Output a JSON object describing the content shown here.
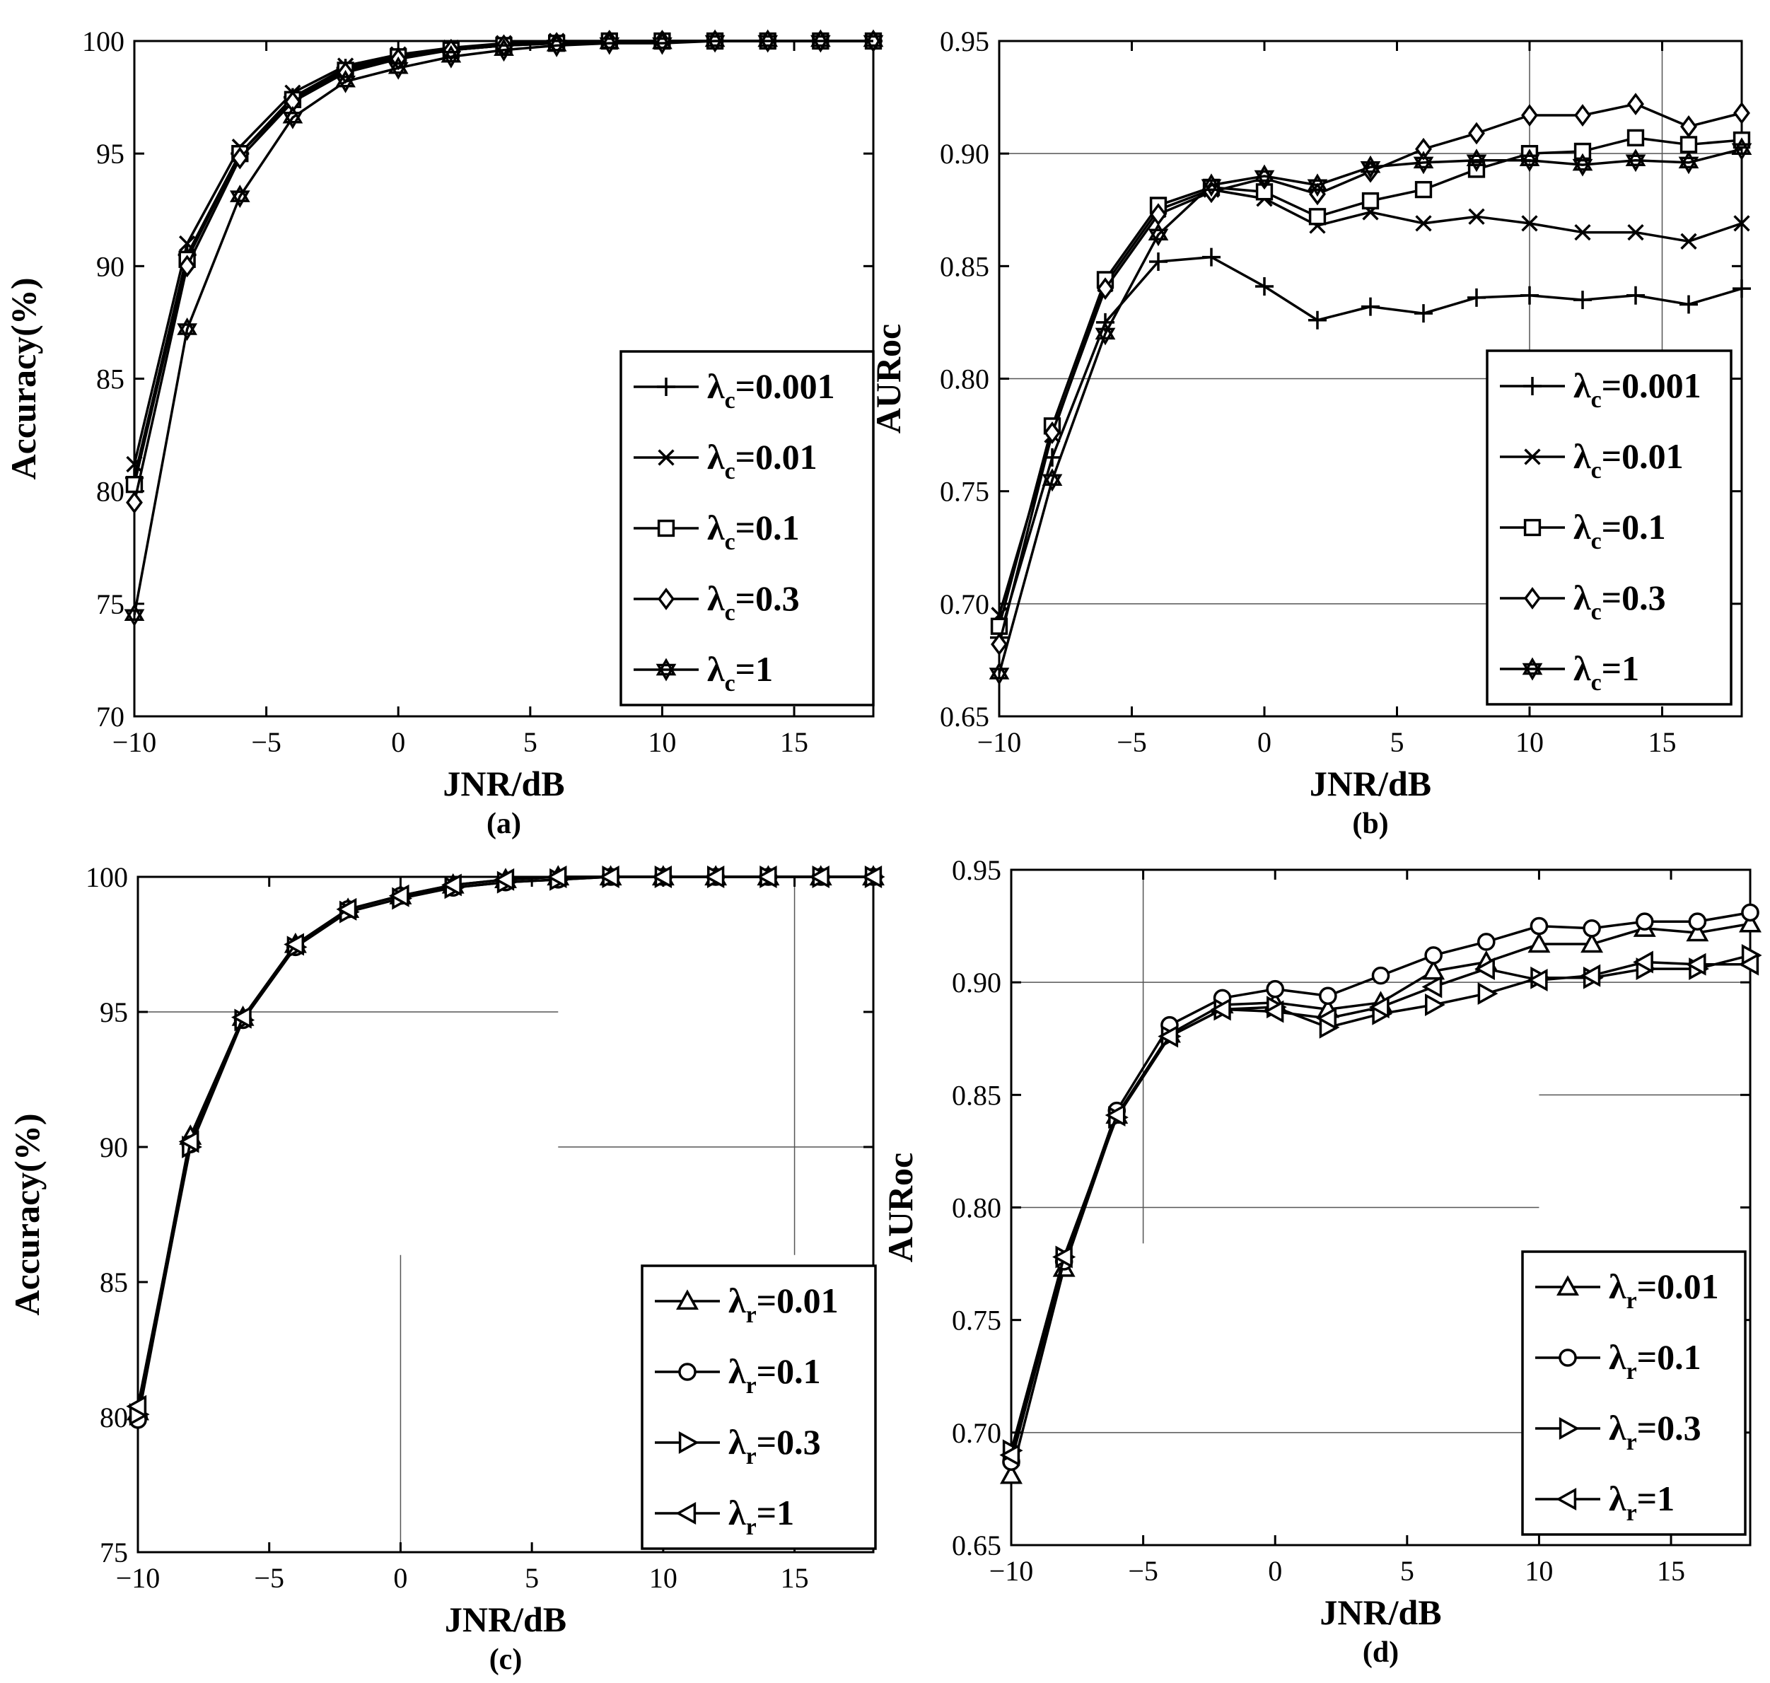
{
  "figure": {
    "background": "#ffffff",
    "line_color": "#000000",
    "grid_color": "#555555"
  },
  "chart_data": [
    {
      "type": "line",
      "panel_label": "(a)",
      "xlabel": "JNR/dB",
      "ylabel": "Accuracy(%)",
      "xlim": [
        -10,
        18
      ],
      "ylim": [
        70,
        100
      ],
      "xticks": [
        -10,
        -5,
        0,
        5,
        10,
        15
      ],
      "yticks": [
        70,
        75,
        80,
        85,
        90,
        95,
        100
      ],
      "ytick_labels": [
        "70",
        "75",
        "80",
        "85",
        "90",
        "95",
        "100"
      ],
      "grid_segments": [],
      "legend_position": "bottom-right",
      "x": [
        -10,
        -8,
        -6,
        -4,
        -2,
        0,
        2,
        4,
        6,
        8,
        10,
        12,
        14,
        16,
        18
      ],
      "series": [
        {
          "name": "=0.001",
          "symbol": "λ",
          "sub": "c",
          "marker": "plus",
          "values": [
            80.6,
            90.5,
            95.0,
            97.5,
            98.8,
            99.3,
            99.6,
            99.8,
            99.9,
            100,
            100,
            100,
            100,
            100,
            100
          ]
        },
        {
          "name": "=0.01",
          "symbol": "λ",
          "sub": "c",
          "marker": "cross",
          "values": [
            81.2,
            91.0,
            95.3,
            97.7,
            98.9,
            99.4,
            99.7,
            99.9,
            100,
            100,
            100,
            100,
            100,
            100,
            100
          ]
        },
        {
          "name": "=0.1",
          "symbol": "λ",
          "sub": "c",
          "marker": "square",
          "values": [
            80.3,
            90.3,
            95.0,
            97.4,
            98.7,
            99.3,
            99.6,
            99.8,
            99.9,
            100,
            100,
            100,
            100,
            100,
            100
          ]
        },
        {
          "name": "=0.3",
          "symbol": "λ",
          "sub": "c",
          "marker": "diamond",
          "values": [
            79.5,
            90.0,
            94.8,
            97.3,
            98.6,
            99.2,
            99.6,
            99.8,
            99.9,
            100,
            100,
            100,
            100,
            100,
            100
          ]
        },
        {
          "name": "=1",
          "symbol": "λ",
          "sub": "c",
          "marker": "star",
          "values": [
            74.5,
            87.2,
            93.1,
            96.6,
            98.2,
            98.8,
            99.3,
            99.6,
            99.8,
            99.9,
            99.9,
            100,
            100,
            100,
            100
          ]
        }
      ]
    },
    {
      "type": "line",
      "panel_label": "(b)",
      "xlabel": "JNR/dB",
      "ylabel": "AURoc",
      "xlim": [
        -10,
        18
      ],
      "ylim": [
        0.65,
        0.95
      ],
      "xticks": [
        -10,
        -5,
        0,
        5,
        10,
        15
      ],
      "yticks": [
        0.65,
        0.7,
        0.75,
        0.8,
        0.85,
        0.9,
        0.95
      ],
      "ytick_labels": [
        "0.65",
        "0.70",
        "0.75",
        "0.80",
        "0.85",
        "0.90",
        "0.95"
      ],
      "grid_segments": [
        {
          "x1": -10,
          "y1": 0.7,
          "x2": 18,
          "y2": 0.7
        },
        {
          "x1": -10,
          "y1": 0.8,
          "x2": 18,
          "y2": 0.8
        },
        {
          "x1": -10,
          "y1": 0.9,
          "x2": 18,
          "y2": 0.9
        },
        {
          "x1": 10,
          "y1": 0.81,
          "x2": 10,
          "y2": 0.95
        },
        {
          "x1": 15,
          "y1": 0.81,
          "x2": 15,
          "y2": 0.95
        }
      ],
      "legend_position": "bottom-right",
      "x": [
        -10,
        -8,
        -6,
        -4,
        -2,
        0,
        2,
        4,
        6,
        8,
        10,
        12,
        14,
        16,
        18
      ],
      "series": [
        {
          "name": "=0.001",
          "symbol": "λ",
          "sub": "c",
          "marker": "plus",
          "values": [
            0.685,
            0.765,
            0.825,
            0.852,
            0.854,
            0.841,
            0.826,
            0.832,
            0.829,
            0.836,
            0.837,
            0.835,
            0.837,
            0.833,
            0.84
          ]
        },
        {
          "name": "=0.01",
          "symbol": "λ",
          "sub": "c",
          "marker": "cross",
          "values": [
            0.695,
            0.775,
            0.842,
            0.875,
            0.884,
            0.88,
            0.868,
            0.874,
            0.869,
            0.872,
            0.869,
            0.865,
            0.865,
            0.861,
            0.869
          ]
        },
        {
          "name": "=0.1",
          "symbol": "λ",
          "sub": "c",
          "marker": "square",
          "values": [
            0.69,
            0.779,
            0.844,
            0.877,
            0.885,
            0.883,
            0.872,
            0.879,
            0.884,
            0.893,
            0.9,
            0.901,
            0.907,
            0.904,
            0.906
          ]
        },
        {
          "name": "=0.3",
          "symbol": "λ",
          "sub": "c",
          "marker": "diamond",
          "values": [
            0.682,
            0.776,
            0.84,
            0.873,
            0.883,
            0.889,
            0.882,
            0.892,
            0.902,
            0.909,
            0.917,
            0.917,
            0.922,
            0.912,
            0.918
          ]
        },
        {
          "name": "=1",
          "symbol": "λ",
          "sub": "c",
          "marker": "star",
          "values": [
            0.669,
            0.755,
            0.82,
            0.864,
            0.886,
            0.89,
            0.886,
            0.894,
            0.896,
            0.897,
            0.897,
            0.895,
            0.897,
            0.896,
            0.902
          ]
        }
      ]
    },
    {
      "type": "line",
      "panel_label": "(c)",
      "xlabel": "JNR/dB",
      "ylabel": "Accuracy(%)",
      "xlim": [
        -10,
        18
      ],
      "ylim": [
        75,
        100
      ],
      "xticks": [
        -10,
        -5,
        0,
        5,
        10,
        15
      ],
      "yticks": [
        75,
        80,
        85,
        90,
        95,
        100
      ],
      "ytick_labels": [
        "75",
        "80",
        "85",
        "90",
        "95",
        "100"
      ],
      "grid_segments": [
        {
          "x1": -10,
          "y1": 95,
          "x2": 6,
          "y2": 95
        },
        {
          "x1": 6,
          "y1": 90,
          "x2": 18,
          "y2": 90
        },
        {
          "x1": 0,
          "y1": 75,
          "x2": 0,
          "y2": 86
        },
        {
          "x1": 15,
          "y1": 86,
          "x2": 15,
          "y2": 100
        }
      ],
      "legend_position": "bottom-right",
      "x": [
        -10,
        -8,
        -6,
        -4,
        -2,
        0,
        2,
        4,
        6,
        8,
        10,
        12,
        14,
        16,
        18
      ],
      "series": [
        {
          "name": "=0.01",
          "symbol": "λ",
          "sub": "r",
          "marker": "triangle-up",
          "values": [
            80.2,
            90.4,
            94.8,
            97.5,
            98.8,
            99.3,
            99.7,
            99.9,
            100,
            100,
            100,
            100,
            100,
            100,
            100
          ]
        },
        {
          "name": "=0.1",
          "symbol": "λ",
          "sub": "r",
          "marker": "circle",
          "values": [
            79.9,
            90.1,
            94.7,
            97.4,
            98.8,
            99.3,
            99.6,
            99.8,
            99.9,
            100,
            100,
            100,
            100,
            100,
            100
          ]
        },
        {
          "name": "=0.3",
          "symbol": "λ",
          "sub": "r",
          "marker": "triangle-right",
          "values": [
            80.1,
            90.0,
            94.7,
            97.4,
            98.7,
            99.2,
            99.6,
            99.8,
            99.9,
            100,
            100,
            100,
            100,
            100,
            100
          ]
        },
        {
          "name": "=1",
          "symbol": "λ",
          "sub": "r",
          "marker": "triangle-left",
          "values": [
            80.4,
            90.2,
            94.8,
            97.5,
            98.8,
            99.3,
            99.7,
            99.9,
            100,
            100,
            100,
            100,
            100,
            100,
            100
          ]
        }
      ]
    },
    {
      "type": "line",
      "panel_label": "(d)",
      "xlabel": "JNR/dB",
      "ylabel": "AURoc",
      "xlim": [
        -10,
        18
      ],
      "ylim": [
        0.65,
        0.95
      ],
      "xticks": [
        -10,
        -5,
        0,
        5,
        10,
        15
      ],
      "yticks": [
        0.65,
        0.7,
        0.75,
        0.8,
        0.85,
        0.9,
        0.95
      ],
      "ytick_labels": [
        "0.65",
        "0.70",
        "0.75",
        "0.80",
        "0.85",
        "0.90",
        "0.95"
      ],
      "grid_segments": [
        {
          "x1": -10,
          "y1": 0.7,
          "x2": 18,
          "y2": 0.7
        },
        {
          "x1": -10,
          "y1": 0.8,
          "x2": 10,
          "y2": 0.8
        },
        {
          "x1": 10,
          "y1": 0.85,
          "x2": 18,
          "y2": 0.85
        },
        {
          "x1": -10,
          "y1": 0.9,
          "x2": 18,
          "y2": 0.9
        },
        {
          "x1": -5,
          "y1": 0.784,
          "x2": -5,
          "y2": 0.95
        }
      ],
      "legend_position": "bottom-right",
      "x": [
        -10,
        -8,
        -6,
        -4,
        -2,
        0,
        2,
        4,
        6,
        8,
        10,
        12,
        14,
        16,
        18
      ],
      "series": [
        {
          "name": "=0.01",
          "symbol": "λ",
          "sub": "r",
          "marker": "triangle-up",
          "values": [
            0.681,
            0.773,
            0.841,
            0.877,
            0.89,
            0.891,
            0.888,
            0.891,
            0.905,
            0.909,
            0.917,
            0.917,
            0.924,
            0.922,
            0.926
          ]
        },
        {
          "name": "=0.1",
          "symbol": "λ",
          "sub": "r",
          "marker": "circle",
          "values": [
            0.687,
            0.776,
            0.843,
            0.881,
            0.893,
            0.897,
            0.894,
            0.903,
            0.912,
            0.918,
            0.925,
            0.924,
            0.927,
            0.927,
            0.931
          ]
        },
        {
          "name": "=0.3",
          "symbol": "λ",
          "sub": "r",
          "marker": "triangle-right",
          "values": [
            0.692,
            0.778,
            0.84,
            0.876,
            0.888,
            0.889,
            0.88,
            0.886,
            0.89,
            0.895,
            0.902,
            0.902,
            0.906,
            0.906,
            0.912
          ]
        },
        {
          "name": "=1",
          "symbol": "λ",
          "sub": "r",
          "marker": "triangle-left",
          "values": [
            0.69,
            0.778,
            0.841,
            0.876,
            0.888,
            0.887,
            0.884,
            0.889,
            0.898,
            0.906,
            0.901,
            0.903,
            0.909,
            0.908,
            0.908
          ]
        }
      ]
    }
  ]
}
